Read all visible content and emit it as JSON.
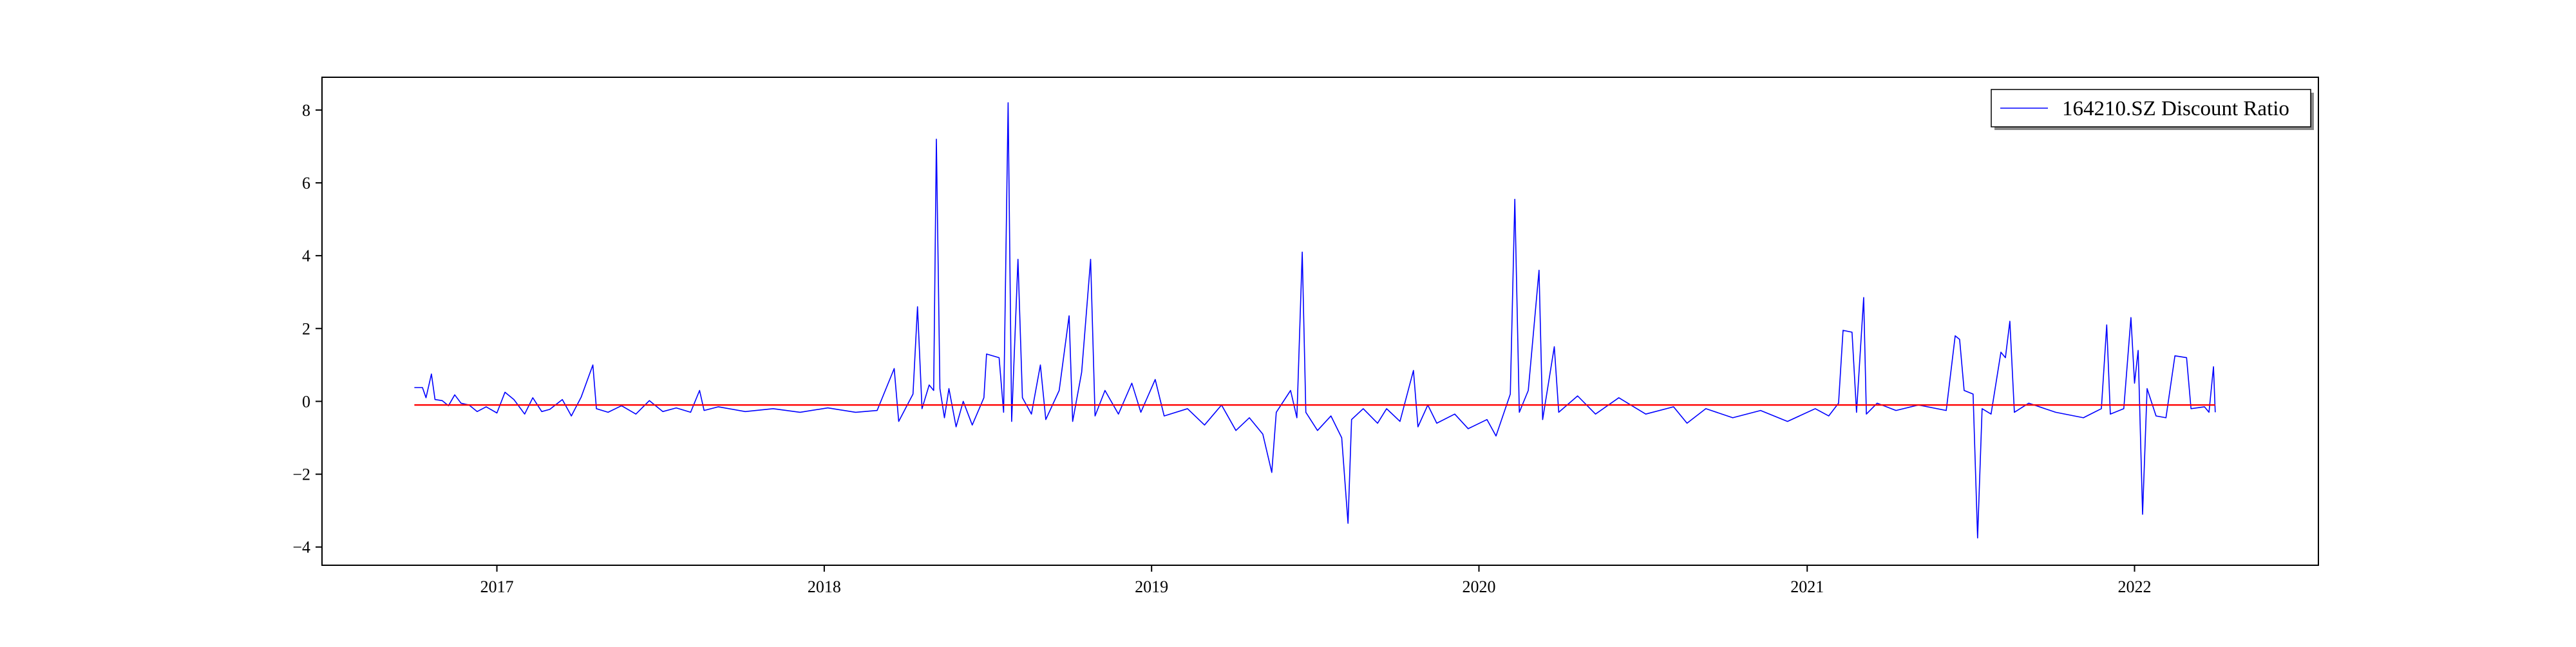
{
  "chart_data": {
    "type": "line",
    "title": "",
    "xlabel": "",
    "ylabel": "",
    "xlim": [
      "2016-06-20",
      "2022-07-25"
    ],
    "ylim": [
      -4.5,
      8.9
    ],
    "x_ticks": [
      "2017",
      "2018",
      "2019",
      "2020",
      "2021",
      "2022"
    ],
    "y_ticks": [
      8,
      6,
      4,
      2,
      0,
      -2,
      -4
    ],
    "grid": false,
    "legend": {
      "position": "top-right",
      "entries": [
        "164210.SZ Discount Ratio"
      ]
    },
    "series": [
      {
        "name": "164210.SZ Discount Ratio",
        "color": "#0000ff",
        "points": [
          [
            "2016-10-01",
            0.38
          ],
          [
            "2016-10-10",
            0.38
          ],
          [
            "2016-10-14",
            0.1
          ],
          [
            "2016-10-20",
            0.75
          ],
          [
            "2016-10-24",
            0.05
          ],
          [
            "2016-11-01",
            0.02
          ],
          [
            "2016-11-08",
            -0.12
          ],
          [
            "2016-11-15",
            0.18
          ],
          [
            "2016-11-22",
            -0.05
          ],
          [
            "2016-12-01",
            -0.1
          ],
          [
            "2016-12-10",
            -0.28
          ],
          [
            "2016-12-20",
            -0.15
          ],
          [
            "2017-01-01",
            -0.32
          ],
          [
            "2017-01-10",
            0.25
          ],
          [
            "2017-01-20",
            0.05
          ],
          [
            "2017-02-01",
            -0.35
          ],
          [
            "2017-02-10",
            0.1
          ],
          [
            "2017-02-20",
            -0.28
          ],
          [
            "2017-03-01",
            -0.22
          ],
          [
            "2017-03-15",
            0.05
          ],
          [
            "2017-03-25",
            -0.4
          ],
          [
            "2017-04-05",
            0.12
          ],
          [
            "2017-04-18",
            1.0
          ],
          [
            "2017-04-22",
            -0.2
          ],
          [
            "2017-05-05",
            -0.3
          ],
          [
            "2017-05-20",
            -0.12
          ],
          [
            "2017-06-05",
            -0.35
          ],
          [
            "2017-06-20",
            0.02
          ],
          [
            "2017-07-05",
            -0.28
          ],
          [
            "2017-07-20",
            -0.18
          ],
          [
            "2017-08-05",
            -0.3
          ],
          [
            "2017-08-15",
            0.3
          ],
          [
            "2017-08-20",
            -0.25
          ],
          [
            "2017-09-05",
            -0.15
          ],
          [
            "2017-10-05",
            -0.28
          ],
          [
            "2017-11-05",
            -0.2
          ],
          [
            "2017-12-05",
            -0.3
          ],
          [
            "2018-01-05",
            -0.18
          ],
          [
            "2018-02-05",
            -0.3
          ],
          [
            "2018-03-01",
            -0.25
          ],
          [
            "2018-03-20",
            0.9
          ],
          [
            "2018-03-25",
            -0.55
          ],
          [
            "2018-04-10",
            0.2
          ],
          [
            "2018-04-15",
            2.6
          ],
          [
            "2018-04-20",
            -0.2
          ],
          [
            "2018-04-28",
            0.45
          ],
          [
            "2018-05-03",
            0.3
          ],
          [
            "2018-05-06",
            7.2
          ],
          [
            "2018-05-10",
            0.35
          ],
          [
            "2018-05-15",
            -0.45
          ],
          [
            "2018-05-20",
            0.35
          ],
          [
            "2018-05-28",
            -0.7
          ],
          [
            "2018-06-05",
            0.0
          ],
          [
            "2018-06-15",
            -0.65
          ],
          [
            "2018-06-28",
            0.1
          ],
          [
            "2018-07-01",
            1.3
          ],
          [
            "2018-07-15",
            1.2
          ],
          [
            "2018-07-20",
            -0.3
          ],
          [
            "2018-07-25",
            8.2
          ],
          [
            "2018-07-29",
            -0.55
          ],
          [
            "2018-08-05",
            3.9
          ],
          [
            "2018-08-10",
            0.1
          ],
          [
            "2018-08-20",
            -0.35
          ],
          [
            "2018-08-30",
            1.0
          ],
          [
            "2018-09-05",
            -0.5
          ],
          [
            "2018-09-20",
            0.3
          ],
          [
            "2018-10-01",
            2.35
          ],
          [
            "2018-10-05",
            -0.55
          ],
          [
            "2018-10-15",
            0.8
          ],
          [
            "2018-10-25",
            3.9
          ],
          [
            "2018-10-30",
            -0.4
          ],
          [
            "2018-11-10",
            0.3
          ],
          [
            "2018-11-25",
            -0.35
          ],
          [
            "2018-12-10",
            0.5
          ],
          [
            "2018-12-20",
            -0.3
          ],
          [
            "2019-01-05",
            0.6
          ],
          [
            "2019-01-15",
            -0.4
          ],
          [
            "2019-02-10",
            -0.2
          ],
          [
            "2019-03-01",
            -0.65
          ],
          [
            "2019-03-20",
            -0.1
          ],
          [
            "2019-04-05",
            -0.8
          ],
          [
            "2019-04-20",
            -0.45
          ],
          [
            "2019-05-05",
            -0.9
          ],
          [
            "2019-05-15",
            -1.95
          ],
          [
            "2019-05-20",
            -0.3
          ],
          [
            "2019-06-05",
            0.3
          ],
          [
            "2019-06-12",
            -0.45
          ],
          [
            "2019-06-18",
            4.1
          ],
          [
            "2019-06-22",
            -0.3
          ],
          [
            "2019-07-05",
            -0.8
          ],
          [
            "2019-07-20",
            -0.4
          ],
          [
            "2019-08-01",
            -1.0
          ],
          [
            "2019-08-08",
            -3.35
          ],
          [
            "2019-08-12",
            -0.5
          ],
          [
            "2019-08-25",
            -0.2
          ],
          [
            "2019-09-10",
            -0.6
          ],
          [
            "2019-09-20",
            -0.2
          ],
          [
            "2019-10-05",
            -0.55
          ],
          [
            "2019-10-20",
            0.85
          ],
          [
            "2019-10-25",
            -0.7
          ],
          [
            "2019-11-05",
            -0.1
          ],
          [
            "2019-11-15",
            -0.6
          ],
          [
            "2019-12-05",
            -0.35
          ],
          [
            "2019-12-20",
            -0.75
          ],
          [
            "2020-01-10",
            -0.5
          ],
          [
            "2020-01-20",
            -0.95
          ],
          [
            "2020-02-05",
            0.2
          ],
          [
            "2020-02-10",
            5.55
          ],
          [
            "2020-02-15",
            -0.3
          ],
          [
            "2020-02-25",
            0.3
          ],
          [
            "2020-03-08",
            3.6
          ],
          [
            "2020-03-12",
            -0.5
          ],
          [
            "2020-03-25",
            1.5
          ],
          [
            "2020-03-30",
            -0.3
          ],
          [
            "2020-04-20",
            0.15
          ],
          [
            "2020-05-10",
            -0.35
          ],
          [
            "2020-06-05",
            0.1
          ],
          [
            "2020-07-05",
            -0.35
          ],
          [
            "2020-08-05",
            -0.15
          ],
          [
            "2020-08-20",
            -0.6
          ],
          [
            "2020-09-10",
            -0.2
          ],
          [
            "2020-10-10",
            -0.45
          ],
          [
            "2020-11-10",
            -0.25
          ],
          [
            "2020-12-10",
            -0.55
          ],
          [
            "2021-01-10",
            -0.2
          ],
          [
            "2021-01-25",
            -0.4
          ],
          [
            "2021-02-05",
            -0.05
          ],
          [
            "2021-02-10",
            1.95
          ],
          [
            "2021-02-20",
            1.9
          ],
          [
            "2021-02-25",
            -0.3
          ],
          [
            "2021-03-05",
            2.85
          ],
          [
            "2021-03-08",
            -0.35
          ],
          [
            "2021-03-20",
            -0.05
          ],
          [
            "2021-04-10",
            -0.25
          ],
          [
            "2021-05-05",
            -0.1
          ],
          [
            "2021-06-05",
            -0.25
          ],
          [
            "2021-06-15",
            1.8
          ],
          [
            "2021-06-20",
            1.7
          ],
          [
            "2021-06-25",
            0.3
          ],
          [
            "2021-07-05",
            0.2
          ],
          [
            "2021-07-10",
            -3.75
          ],
          [
            "2021-07-15",
            -0.2
          ],
          [
            "2021-07-25",
            -0.35
          ],
          [
            "2021-08-05",
            1.35
          ],
          [
            "2021-08-10",
            1.2
          ],
          [
            "2021-08-15",
            2.2
          ],
          [
            "2021-08-20",
            -0.3
          ],
          [
            "2021-09-05",
            -0.05
          ],
          [
            "2021-10-05",
            -0.3
          ],
          [
            "2021-11-05",
            -0.45
          ],
          [
            "2021-11-25",
            -0.2
          ],
          [
            "2021-12-01",
            2.1
          ],
          [
            "2021-12-05",
            -0.35
          ],
          [
            "2021-12-20",
            -0.2
          ],
          [
            "2021-12-28",
            2.3
          ],
          [
            "2022-01-01",
            0.5
          ],
          [
            "2022-01-05",
            1.4
          ],
          [
            "2022-01-10",
            -3.1
          ],
          [
            "2022-01-15",
            0.35
          ],
          [
            "2022-01-25",
            -0.4
          ],
          [
            "2022-02-05",
            -0.45
          ],
          [
            "2022-02-15",
            1.25
          ],
          [
            "2022-02-28",
            1.2
          ],
          [
            "2022-03-05",
            -0.2
          ],
          [
            "2022-03-20",
            -0.15
          ],
          [
            "2022-03-25",
            -0.3
          ],
          [
            "2022-03-30",
            0.95
          ],
          [
            "2022-04-01",
            -0.3
          ]
        ]
      },
      {
        "name": "",
        "color": "#ff0000",
        "points": [
          [
            "2016-10-01",
            -0.1
          ],
          [
            "2022-04-01",
            -0.1
          ]
        ]
      }
    ]
  }
}
